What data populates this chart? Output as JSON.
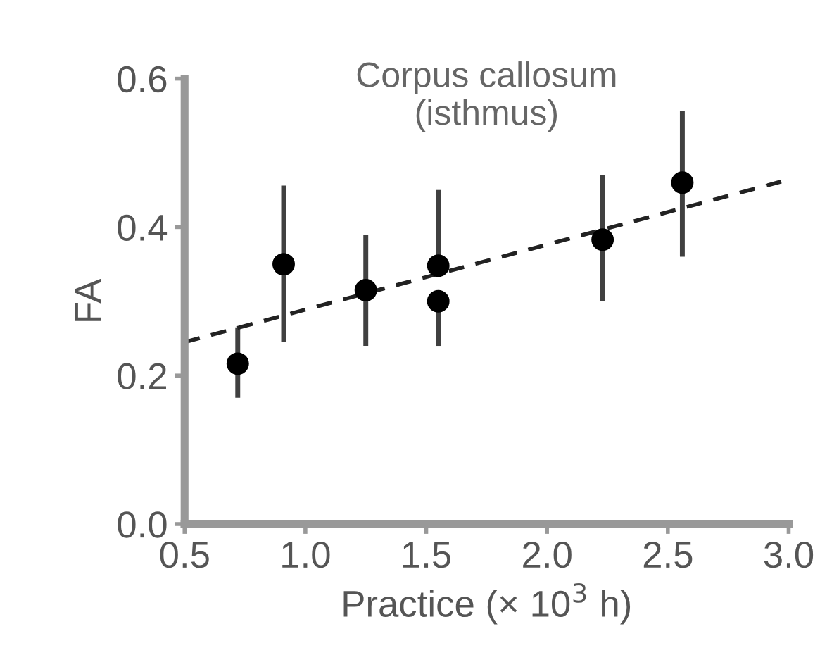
{
  "chart_data": {
    "type": "scatter",
    "title": "Corpus callosum\n(isthmus)",
    "xlabel": "Practice (× 10$^{3}$ h)",
    "ylabel": "FA",
    "xlim": [
      0.5,
      3.0
    ],
    "xticks": [
      0.5,
      {
        "value": 1.0,
        "label": "1.0"
      },
      1.5,
      {
        "value": 2.0,
        "label": "2.0"
      },
      2.5,
      {
        "value": 3.0,
        "label": "3.0"
      }
    ],
    "ylim": [
      0.0,
      0.6
    ],
    "yticks": [
      {
        "value": 0.0,
        "label": "0.0"
      },
      0.2,
      0.4,
      0.6
    ],
    "grid": false,
    "legend": false,
    "series": [
      {
        "color": "#000000",
        "marker": "circle",
        "x": [
          0.72,
          0.91,
          1.25,
          1.55,
          1.55,
          2.23,
          2.56
        ],
        "values": [
          0.216,
          0.35,
          0.315,
          0.348,
          0.3,
          0.383,
          0.46
        ],
        "errors": [
          [
            0.17,
            0.265
          ],
          [
            0.245,
            0.456
          ],
          [
            0.24,
            0.39
          ],
          [
            0.348,
            0.45
          ],
          [
            0.24,
            0.3
          ],
          [
            0.3,
            0.47
          ],
          [
            0.36,
            0.557
          ]
        ]
      },
      {
        "type": "line",
        "color": "#222222",
        "line_style": "dashed",
        "x": [
          0.5,
          3.0
        ],
        "values": [
          0.245,
          0.464
        ]
      }
    ]
  }
}
